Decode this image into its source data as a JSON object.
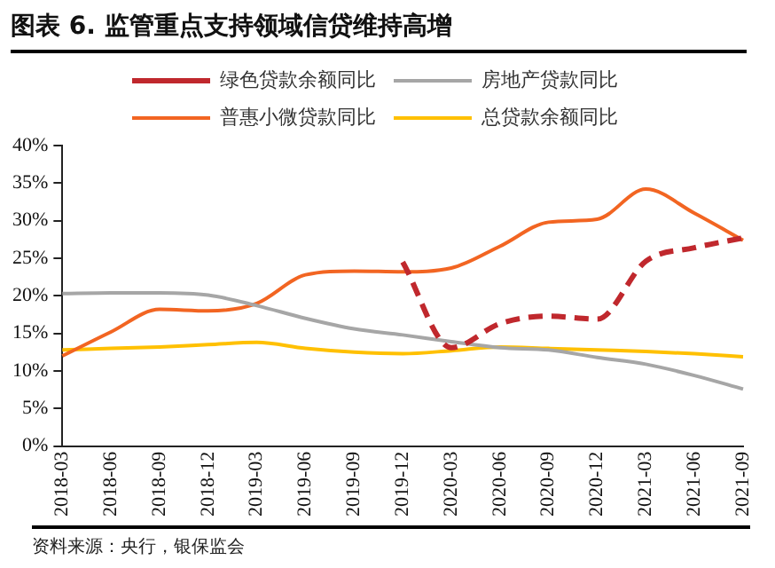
{
  "chart_data": {
    "type": "line",
    "title": "图表 6.  监管重点支持领域信贷维持高增",
    "categories": [
      "2018-03",
      "2018-06",
      "2018-09",
      "2018-12",
      "2019-03",
      "2019-06",
      "2019-09",
      "2019-12",
      "2020-03",
      "2020-06",
      "2020-09",
      "2020-12",
      "2021-03",
      "2021-06",
      "2021-09"
    ],
    "series": [
      {
        "name": "绿色贷款余额同比",
        "color": "#c0282d",
        "line_style": "dashed",
        "values": [
          null,
          null,
          null,
          null,
          null,
          null,
          null,
          24.5,
          13.1,
          16.3,
          17.3,
          16.9,
          24.6,
          26.4,
          27.7
        ]
      },
      {
        "name": "房地产贷款同比",
        "color": "#a6a6a6",
        "values": [
          20.3,
          20.4,
          20.4,
          20.1,
          18.7,
          17.0,
          15.6,
          14.8,
          13.9,
          13.1,
          12.8,
          11.8,
          10.9,
          9.4,
          7.6
        ]
      },
      {
        "name": "普惠小微贷款同比",
        "color": "#f26522",
        "values": [
          12.0,
          15.2,
          18.2,
          18.0,
          19.0,
          22.8,
          23.3,
          23.2,
          23.7,
          26.6,
          29.8,
          30.2,
          34.2,
          31.0,
          27.4
        ]
      },
      {
        "name": "总贷款余额同比",
        "color": "#ffc000",
        "values": [
          12.8,
          13.0,
          13.2,
          13.5,
          13.8,
          13.0,
          12.5,
          12.3,
          12.7,
          13.2,
          13.0,
          12.8,
          12.6,
          12.3,
          11.9
        ]
      }
    ],
    "ylim": [
      0,
      40
    ],
    "yticks": [
      {
        "value": 0,
        "label": "0%"
      },
      {
        "value": 5,
        "label": "5%"
      },
      {
        "value": 10,
        "label": "10%"
      },
      {
        "value": 15,
        "label": "15%"
      },
      {
        "value": 20,
        "label": "20%"
      },
      {
        "value": 25,
        "label": "25%"
      },
      {
        "value": 30,
        "label": "30%"
      },
      {
        "value": 35,
        "label": "35%"
      },
      {
        "value": 40,
        "label": "40%"
      }
    ],
    "grid": false,
    "legend": "top",
    "marker": "none",
    "line_style": "solid",
    "annotations": [
      "资料来源：央行，银保监会"
    ]
  }
}
